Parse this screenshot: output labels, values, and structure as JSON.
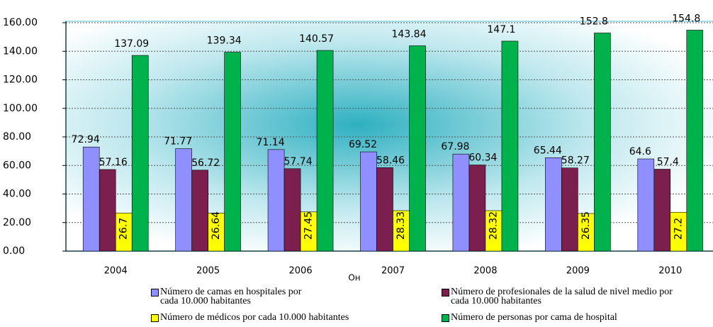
{
  "chart_data": {
    "type": "bar",
    "x_label": "Он",
    "categories": [
      "2004",
      "2005",
      "2006",
      "2007",
      "2008",
      "2009",
      "2010"
    ],
    "series": [
      {
        "name": "Número de camas en hospitales por cada 10.000 habitantes",
        "color": "#8f8fff",
        "values": [
          72.94,
          71.77,
          71.14,
          69.52,
          67.98,
          65.44,
          64.6
        ]
      },
      {
        "name": "Número de profesionales de la salud de nivel medio por cada 10.000 habitantes",
        "color": "#7b1f4e",
        "values": [
          57.16,
          56.72,
          57.74,
          58.46,
          60.34,
          58.27,
          57.4
        ]
      },
      {
        "name": "Número de médicos por cada 10.000 habitantes",
        "color": "#ffff00",
        "values": [
          26.7,
          26.64,
          27.45,
          28.33,
          28.32,
          26.35,
          27.2
        ]
      },
      {
        "name": "Número de personas por cama de hospital",
        "color": "#00b24c",
        "values": [
          137.09,
          139.34,
          140.57,
          143.84,
          147.1,
          152.8,
          154.8
        ]
      }
    ],
    "ylim": [
      0,
      160
    ],
    "yticks": [
      {
        "value": 0,
        "label": "0.00"
      },
      {
        "value": 20,
        "label": "20.00"
      },
      {
        "value": 40,
        "label": "40.00"
      },
      {
        "value": 60,
        "label": "60.00"
      },
      {
        "value": 80,
        "label": "80.00"
      },
      {
        "value": 100,
        "label": "100.00"
      },
      {
        "value": 120,
        "label": "120.00"
      },
      {
        "value": 140,
        "label": "140.00"
      },
      {
        "value": 160,
        "label": "160.00"
      }
    ],
    "grid": true
  }
}
